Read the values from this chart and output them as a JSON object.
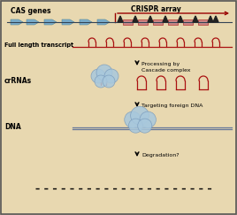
{
  "bg_color": "#e8d8b0",
  "border_color": "#555555",
  "cas_label": "CAS genes",
  "crispr_label": "CRISPR array",
  "transcript_label": "Full length transcript",
  "crrna_label": "crRNAs",
  "dna_label": "DNA",
  "process_label": "Processing by\nCascade complex",
  "target_label": "Targeting foreign DNA",
  "degrade_label": "Degradation?",
  "arrow_color": "#990000",
  "gene_color": "#7aadcc",
  "repeat_color": "#aa1111",
  "spacer_color": "#cc8888",
  "line_color": "#aa1111",
  "blob_color": "#a8c8dd",
  "blob_edge": "#7799bb",
  "dna_line_color": "#667799"
}
